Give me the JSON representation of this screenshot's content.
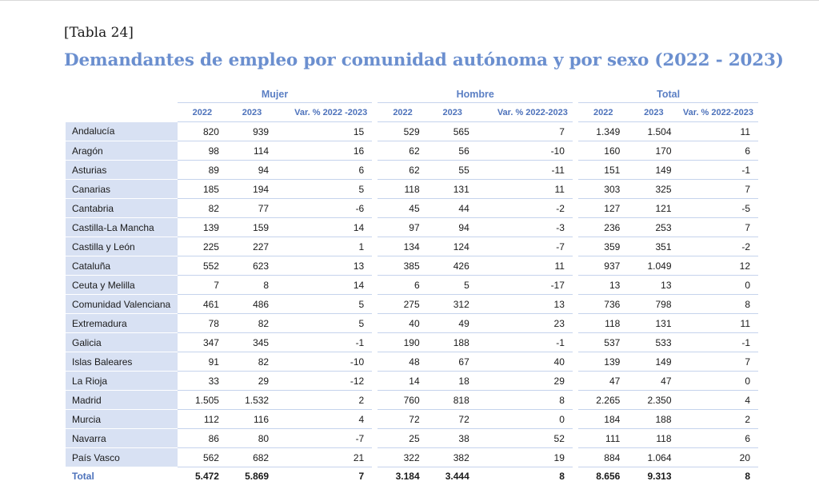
{
  "tag": "[Tabla 24]",
  "title": "Demandantes de empleo por comunidad autónoma y por sexo (2022 - 2023)",
  "groups": {
    "mujer": "Mujer",
    "hombre": "Hombre",
    "total": "Total"
  },
  "subheaders": {
    "mujer": [
      "2022",
      "2023",
      "Var. % 2022 -2023"
    ],
    "hombre": [
      "2022",
      "2023",
      "Var. % 2022-2023"
    ],
    "total": [
      "2022",
      "2023",
      "Var. % 2022-2023"
    ]
  },
  "rows": [
    {
      "name": "Andalucía",
      "vals": [
        "820",
        "939",
        "15",
        "529",
        "565",
        "7",
        "1.349",
        "1.504",
        "11"
      ]
    },
    {
      "name": "Aragón",
      "vals": [
        "98",
        "114",
        "16",
        "62",
        "56",
        "-10",
        "160",
        "170",
        "6"
      ]
    },
    {
      "name": "Asturias",
      "vals": [
        "89",
        "94",
        "6",
        "62",
        "55",
        "-11",
        "151",
        "149",
        "-1"
      ]
    },
    {
      "name": "Canarias",
      "vals": [
        "185",
        "194",
        "5",
        "118",
        "131",
        "11",
        "303",
        "325",
        "7"
      ]
    },
    {
      "name": "Cantabria",
      "vals": [
        "82",
        "77",
        "-6",
        "45",
        "44",
        "-2",
        "127",
        "121",
        "-5"
      ]
    },
    {
      "name": "Castilla-La Mancha",
      "vals": [
        "139",
        "159",
        "14",
        "97",
        "94",
        "-3",
        "236",
        "253",
        "7"
      ]
    },
    {
      "name": "Castilla y León",
      "vals": [
        "225",
        "227",
        "1",
        "134",
        "124",
        "-7",
        "359",
        "351",
        "-2"
      ]
    },
    {
      "name": "Cataluña",
      "vals": [
        "552",
        "623",
        "13",
        "385",
        "426",
        "11",
        "937",
        "1.049",
        "12"
      ]
    },
    {
      "name": "Ceuta y Melilla",
      "vals": [
        "7",
        "8",
        "14",
        "6",
        "5",
        "-17",
        "13",
        "13",
        "0"
      ]
    },
    {
      "name": "Comunidad Valenciana",
      "vals": [
        "461",
        "486",
        "5",
        "275",
        "312",
        "13",
        "736",
        "798",
        "8"
      ]
    },
    {
      "name": "Extremadura",
      "vals": [
        "78",
        "82",
        "5",
        "40",
        "49",
        "23",
        "118",
        "131",
        "11"
      ]
    },
    {
      "name": "Galicia",
      "vals": [
        "347",
        "345",
        "-1",
        "190",
        "188",
        "-1",
        "537",
        "533",
        "-1"
      ]
    },
    {
      "name": "Islas Baleares",
      "vals": [
        "91",
        "82",
        "-10",
        "48",
        "67",
        "40",
        "139",
        "149",
        "7"
      ]
    },
    {
      "name": "La Rioja",
      "vals": [
        "33",
        "29",
        "-12",
        "14",
        "18",
        "29",
        "47",
        "47",
        "0"
      ]
    },
    {
      "name": "Madrid",
      "vals": [
        "1.505",
        "1.532",
        "2",
        "760",
        "818",
        "8",
        "2.265",
        "2.350",
        "4"
      ]
    },
    {
      "name": "Murcia",
      "vals": [
        "112",
        "116",
        "4",
        "72",
        "72",
        "0",
        "184",
        "188",
        "2"
      ]
    },
    {
      "name": "Navarra",
      "vals": [
        "86",
        "80",
        "-7",
        "25",
        "38",
        "52",
        "111",
        "118",
        "6"
      ]
    },
    {
      "name": "País Vasco",
      "vals": [
        "562",
        "682",
        "21",
        "322",
        "382",
        "19",
        "884",
        "1.064",
        "20"
      ]
    }
  ],
  "total": {
    "name": "Total",
    "vals": [
      "5.472",
      "5.869",
      "7",
      "3.184",
      "3.444",
      "8",
      "8.656",
      "9.313",
      "8"
    ]
  }
}
